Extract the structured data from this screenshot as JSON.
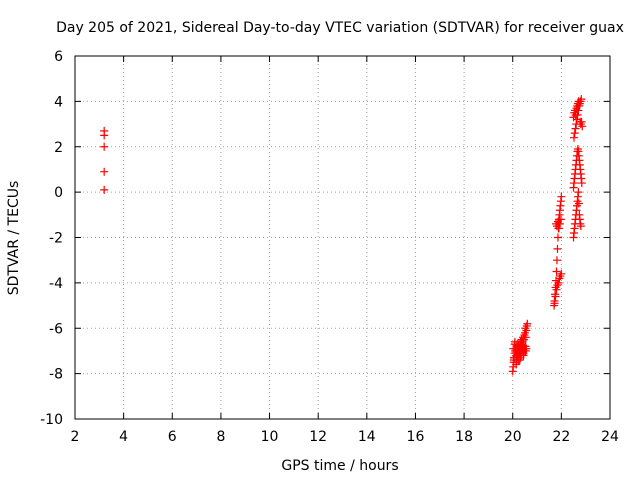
{
  "chart_data": {
    "type": "scatter",
    "title": "Day 205 of 2021, Sidereal Day-to-day VTEC variation (SDTVAR) for receiver guax",
    "xlabel": "GPS time / hours",
    "ylabel": "SDTVAR / TECUs",
    "xlim": [
      2,
      24
    ],
    "ylim": [
      -10,
      6
    ],
    "xticks": [
      "2",
      "4",
      "6",
      "8",
      "10",
      "12",
      "14",
      "16",
      "18",
      "20",
      "22",
      "24"
    ],
    "yticks": [
      "6",
      "4",
      "2",
      "0",
      "-2",
      "-4",
      "-6",
      "-8",
      "-10"
    ],
    "grid": true,
    "marker": "+",
    "color": "#ff0000",
    "series": [
      {
        "name": "SDTVAR",
        "x": [
          3.2,
          3.2,
          3.2,
          3.2,
          3.2,
          20.0,
          20.02,
          20.04,
          20.06,
          20.08,
          20.1,
          20.12,
          20.14,
          20.16,
          20.18,
          20.2,
          20.22,
          20.24,
          20.26,
          20.28,
          20.3,
          20.32,
          20.34,
          20.36,
          20.38,
          20.4,
          20.42,
          20.44,
          20.46,
          20.48,
          20.5,
          20.52,
          20.54,
          20.56,
          20.58,
          20.6,
          20.02,
          20.05,
          20.08,
          20.11,
          20.14,
          20.17,
          20.2,
          20.23,
          20.26,
          20.29,
          20.32,
          20.35,
          20.38,
          20.41,
          20.44,
          20.47,
          20.5,
          20.53,
          20.56,
          20.04,
          20.09,
          20.14,
          20.19,
          20.24,
          20.29,
          20.34,
          20.39,
          20.44,
          20.49,
          20.54,
          21.7,
          21.72,
          21.74,
          21.76,
          21.78,
          21.8,
          21.82,
          21.84,
          21.86,
          21.88,
          21.9,
          21.92,
          21.94,
          21.96,
          21.98,
          22.0,
          21.72,
          21.76,
          21.8,
          21.84,
          21.88,
          21.92,
          21.96,
          22.0,
          21.78,
          21.82,
          21.86,
          21.9,
          21.94,
          21.98,
          22.5,
          22.52,
          22.54,
          22.56,
          22.58,
          22.6,
          22.62,
          22.64,
          22.66,
          22.68,
          22.7,
          22.72,
          22.74,
          22.76,
          22.78,
          22.8,
          22.5,
          22.52,
          22.54,
          22.56,
          22.58,
          22.6,
          22.62,
          22.64,
          22.66,
          22.68,
          22.7,
          22.72,
          22.74,
          22.76,
          22.78,
          22.8,
          22.82,
          22.84,
          22.52,
          22.55,
          22.58,
          22.61,
          22.64,
          22.67,
          22.7,
          22.73,
          22.76,
          22.79,
          22.82,
          22.5,
          22.53,
          22.56,
          22.59,
          22.62,
          22.65,
          22.68,
          22.71,
          22.74,
          22.77,
          22.8,
          22.83,
          22.86
        ],
        "y": [
          2.7,
          2.5,
          2.0,
          0.9,
          0.1,
          -7.9,
          -7.7,
          -7.5,
          -7.3,
          -7.1,
          -7.0,
          -6.9,
          -7.2,
          -7.4,
          -7.0,
          -6.9,
          -7.1,
          -6.8,
          -6.7,
          -7.0,
          -6.9,
          -6.6,
          -6.8,
          -6.5,
          -6.7,
          -6.6,
          -6.4,
          -6.8,
          -6.5,
          -6.3,
          -6.2,
          -6.0,
          -6.4,
          -6.1,
          -5.9,
          -5.8,
          -6.9,
          -7.3,
          -6.7,
          -7.0,
          -7.6,
          -6.8,
          -7.2,
          -7.4,
          -7.1,
          -6.9,
          -7.3,
          -7.2,
          -7.0,
          -6.9,
          -7.1,
          -6.9,
          -7.0,
          -6.8,
          -6.9,
          -7.4,
          -6.6,
          -7.5,
          -6.7,
          -6.9,
          -7.4,
          -7.0,
          -6.6,
          -7.2,
          -6.9,
          -7.0,
          -5.0,
          -4.8,
          -4.5,
          -4.2,
          -3.9,
          -3.5,
          -3.0,
          -2.5,
          -2.0,
          -1.6,
          -1.2,
          -1.0,
          -0.8,
          -0.6,
          -0.4,
          -0.2,
          -4.9,
          -4.6,
          -4.3,
          -4.1,
          -4.0,
          -3.8,
          -3.7,
          -3.6,
          -1.4,
          -1.5,
          -1.3,
          -1.6,
          -1.4,
          -1.2,
          -2.0,
          -1.8,
          -1.6,
          -1.4,
          -1.2,
          -1.0,
          -0.8,
          -0.6,
          -0.4,
          -0.2,
          0.0,
          -0.5,
          -1.0,
          -1.2,
          -1.4,
          -1.5,
          0.2,
          0.4,
          0.6,
          0.8,
          1.0,
          1.2,
          1.4,
          1.6,
          1.8,
          1.9,
          1.8,
          1.6,
          1.4,
          1.2,
          1.0,
          0.8,
          0.6,
          0.4,
          2.4,
          2.6,
          2.8,
          3.0,
          3.2,
          3.4,
          3.6,
          3.8,
          3.9,
          4.0,
          4.1,
          3.3,
          3.5,
          3.6,
          3.4,
          3.7,
          3.8,
          3.9,
          4.0,
          3.8,
          3.1,
          3.0,
          3.1,
          2.9
        ]
      }
    ]
  }
}
